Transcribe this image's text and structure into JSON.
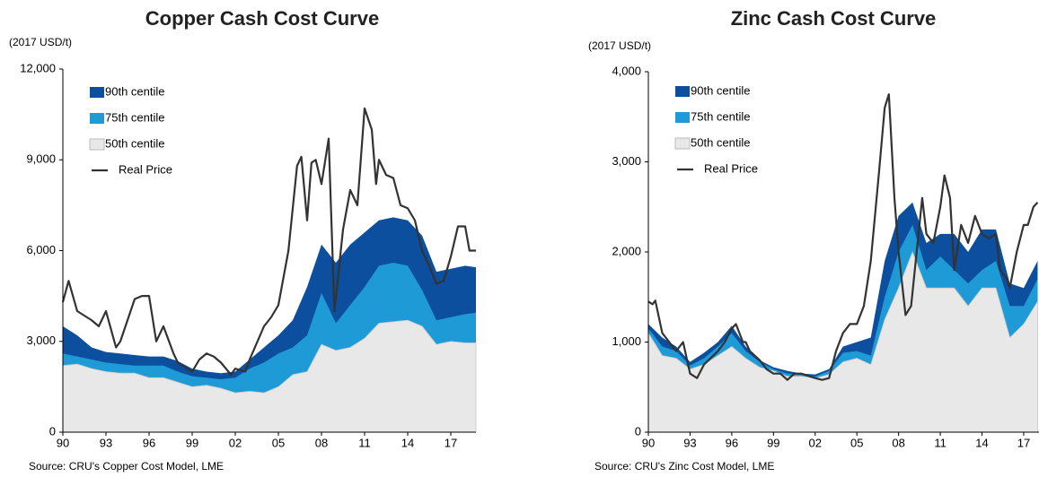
{
  "chart_data": [
    {
      "type": "area",
      "title": "Copper Cash Cost Curve",
      "y_label": "(2017 USD/t)",
      "source": "Source: CRU's Copper Cost Model, LME",
      "xlim": [
        1990,
        2018.75
      ],
      "ylim": [
        0,
        12000
      ],
      "xticks": [
        {
          "value": 1990,
          "label": "90"
        },
        {
          "value": 1993,
          "label": "93"
        },
        {
          "value": 1996,
          "label": "96"
        },
        {
          "value": 1999,
          "label": "99"
        },
        {
          "value": 2002,
          "label": "02"
        },
        {
          "value": 2005,
          "label": "05"
        },
        {
          "value": 2008,
          "label": "08"
        },
        {
          "value": 2011,
          "label": "11"
        },
        {
          "value": 2014,
          "label": "14"
        },
        {
          "value": 2017,
          "label": "17"
        }
      ],
      "yticks": [
        0,
        {
          "value": 3000,
          "label": "3,000"
        },
        {
          "value": 6000,
          "label": "6,000"
        },
        {
          "value": 9000,
          "label": "9,000"
        },
        {
          "value": 12000,
          "label": "12,000"
        }
      ],
      "legend": "upper left",
      "series": [
        {
          "name": "90th centile",
          "type": "area",
          "color": "#0b4f9e",
          "x": [
            1990,
            1991,
            1992,
            1993,
            1994,
            1995,
            1996,
            1997,
            1998,
            1999,
            2000,
            2001,
            2002,
            2003,
            2004,
            2005,
            2006,
            2007,
            2008,
            2009,
            2010,
            2011,
            2012,
            2013,
            2014,
            2015,
            2016,
            2017,
            2018,
            2018.75
          ],
          "values": [
            3500,
            3200,
            2800,
            2650,
            2600,
            2550,
            2500,
            2500,
            2350,
            2100,
            2000,
            1950,
            2000,
            2400,
            2800,
            3200,
            3700,
            4800,
            6200,
            5600,
            6200,
            6600,
            7000,
            7100,
            7000,
            6500,
            5300,
            5400,
            5500,
            5450
          ]
        },
        {
          "name": "75th centile",
          "type": "area",
          "color": "#1e9ad6",
          "x": [
            1990,
            1991,
            1992,
            1993,
            1994,
            1995,
            1996,
            1997,
            1998,
            1999,
            2000,
            2001,
            2002,
            2003,
            2004,
            2005,
            2006,
            2007,
            2008,
            2009,
            2010,
            2011,
            2012,
            2013,
            2014,
            2015,
            2016,
            2017,
            2018,
            2018.75
          ],
          "values": [
            2600,
            2500,
            2400,
            2300,
            2250,
            2200,
            2200,
            2200,
            2000,
            1850,
            1800,
            1750,
            1800,
            2100,
            2300,
            2600,
            2800,
            3200,
            4600,
            3600,
            4200,
            4800,
            5500,
            5600,
            5500,
            4700,
            3700,
            3800,
            3900,
            3950
          ]
        },
        {
          "name": "50th centile",
          "type": "area",
          "color": "#e8e8e8",
          "x": [
            1990,
            1991,
            1992,
            1993,
            1994,
            1995,
            1996,
            1997,
            1998,
            1999,
            2000,
            2001,
            2002,
            2003,
            2004,
            2005,
            2006,
            2007,
            2008,
            2009,
            2010,
            2011,
            2012,
            2013,
            2014,
            2015,
            2016,
            2017,
            2018,
            2018.75
          ],
          "values": [
            2200,
            2250,
            2100,
            2000,
            1950,
            1950,
            1800,
            1800,
            1650,
            1500,
            1550,
            1450,
            1300,
            1350,
            1300,
            1500,
            1900,
            2000,
            2900,
            2700,
            2800,
            3100,
            3600,
            3650,
            3700,
            3500,
            2900,
            3000,
            2950,
            2950
          ]
        },
        {
          "name": "Real Price",
          "type": "line",
          "color": "#333333",
          "x": [
            1990,
            1990.4,
            1991,
            1992,
            1992.5,
            1993,
            1993.7,
            1994,
            1995,
            1995.5,
            1996,
            1996.5,
            1997,
            1997.7,
            1998,
            1999,
            1999.5,
            2000,
            2000.5,
            2001,
            2001.7,
            2002,
            2002.7,
            2003,
            2004,
            2004.5,
            2005,
            2005.7,
            2006.3,
            2006.6,
            2007,
            2007.3,
            2007.6,
            2008,
            2008.5,
            2008.9,
            2009.5,
            2010,
            2010.5,
            2011,
            2011.5,
            2011.8,
            2012,
            2012.5,
            2013,
            2013.5,
            2014,
            2014.5,
            2015,
            2015.5,
            2016,
            2016.5,
            2017,
            2017.5,
            2018,
            2018.3,
            2018.75
          ],
          "values": [
            4300,
            5000,
            4000,
            3700,
            3500,
            4000,
            2800,
            3000,
            4400,
            4500,
            4500,
            3000,
            3500,
            2600,
            2300,
            2000,
            2400,
            2600,
            2500,
            2300,
            1900,
            2100,
            2000,
            2400,
            3500,
            3800,
            4200,
            6000,
            8800,
            9100,
            7000,
            8900,
            9000,
            8200,
            9700,
            4000,
            6700,
            8000,
            7500,
            10700,
            10000,
            8200,
            9000,
            8500,
            8400,
            7500,
            7400,
            7000,
            6000,
            5500,
            4900,
            5000,
            5800,
            6800,
            6800,
            6000,
            6000
          ]
        }
      ]
    },
    {
      "type": "area",
      "title": "Zinc Cash Cost Curve",
      "y_label": "(2017 USD/t)",
      "source": "Source: CRU's Zinc Cost Model, LME",
      "xlim": [
        1990,
        2018.1
      ],
      "ylim": [
        0,
        4000
      ],
      "xticks": [
        {
          "value": 1990,
          "label": "90"
        },
        {
          "value": 1993,
          "label": "93"
        },
        {
          "value": 1996,
          "label": "96"
        },
        {
          "value": 1999,
          "label": "99"
        },
        {
          "value": 2002,
          "label": "02"
        },
        {
          "value": 2005,
          "label": "05"
        },
        {
          "value": 2008,
          "label": "08"
        },
        {
          "value": 2011,
          "label": "11"
        },
        {
          "value": 2014,
          "label": "14"
        },
        {
          "value": 2017,
          "label": "17"
        }
      ],
      "yticks": [
        0,
        {
          "value": 1000,
          "label": "1,000"
        },
        {
          "value": 2000,
          "label": "2,000"
        },
        {
          "value": 3000,
          "label": "3,000"
        },
        {
          "value": 4000,
          "label": "4,000"
        }
      ],
      "legend": "upper left",
      "series": [
        {
          "name": "90th centile",
          "type": "area",
          "color": "#0b4f9e",
          "x": [
            1990,
            1991,
            1992,
            1993,
            1994,
            1995,
            1996,
            1997,
            1998,
            1999,
            2000,
            2001,
            2002,
            2003,
            2004,
            2005,
            2006,
            2007,
            2008,
            2009,
            2010,
            2011,
            2012,
            2013,
            2014,
            2015,
            2016,
            2017,
            2018
          ],
          "values": [
            1200,
            1050,
            950,
            780,
            880,
            1000,
            1180,
            950,
            800,
            720,
            680,
            650,
            640,
            700,
            950,
            1000,
            1050,
            1900,
            2400,
            2550,
            2100,
            2200,
            2200,
            2000,
            2250,
            2250,
            1650,
            1600,
            1900
          ]
        },
        {
          "name": "75th centile",
          "type": "area",
          "color": "#1e9ad6",
          "x": [
            1990,
            1991,
            1992,
            1993,
            1994,
            1995,
            1996,
            1997,
            1998,
            1999,
            2000,
            2001,
            2002,
            2003,
            2004,
            2005,
            2006,
            2007,
            2008,
            2009,
            2010,
            2011,
            2012,
            2013,
            2014,
            2015,
            2016,
            2017,
            2018
          ],
          "values": [
            1150,
            950,
            900,
            740,
            820,
            950,
            1100,
            900,
            780,
            700,
            650,
            640,
            620,
            680,
            880,
            900,
            850,
            1500,
            2000,
            2300,
            1800,
            1950,
            1800,
            1650,
            1800,
            1900,
            1400,
            1400,
            1700
          ]
        },
        {
          "name": "50th centile",
          "type": "area",
          "color": "#e8e8e8",
          "x": [
            1990,
            1991,
            1992,
            1993,
            1994,
            1995,
            1996,
            1997,
            1998,
            1999,
            2000,
            2001,
            2002,
            2003,
            2004,
            2005,
            2006,
            2007,
            2008,
            2009,
            2010,
            2011,
            2012,
            2013,
            2014,
            2015,
            2016,
            2017,
            2018
          ],
          "values": [
            1100,
            850,
            820,
            700,
            750,
            850,
            950,
            820,
            720,
            680,
            620,
            620,
            600,
            640,
            780,
            820,
            750,
            1250,
            1600,
            2000,
            1600,
            1600,
            1600,
            1400,
            1600,
            1600,
            1050,
            1200,
            1450
          ]
        },
        {
          "name": "Real Price",
          "type": "line",
          "color": "#333333",
          "x": [
            1990,
            1990.3,
            1990.5,
            1991,
            1992,
            1992.5,
            1993,
            1993.5,
            1994,
            1995,
            1995.5,
            1996,
            1996.3,
            1996.8,
            1997,
            1997.3,
            1998,
            1998.5,
            1999,
            1999.5,
            2000,
            2000.5,
            2001,
            2002,
            2002.5,
            2003,
            2003.5,
            2004,
            2004.5,
            2005,
            2005.5,
            2006,
            2006.6,
            2007,
            2007.3,
            2007.7,
            2008,
            2008.5,
            2008.9,
            2009.3,
            2009.7,
            2010,
            2010.5,
            2011,
            2011.3,
            2011.7,
            2012,
            2012.5,
            2013,
            2013.5,
            2014,
            2014.5,
            2015,
            2015.3,
            2015.8,
            2016,
            2016.5,
            2017,
            2017.3,
            2017.7,
            2018
          ],
          "values": [
            1450,
            1420,
            1460,
            1100,
            900,
            1000,
            650,
            600,
            750,
            900,
            1000,
            1150,
            1200,
            1000,
            1000,
            900,
            800,
            700,
            650,
            650,
            580,
            650,
            650,
            600,
            580,
            600,
            900,
            1100,
            1200,
            1200,
            1400,
            1900,
            2900,
            3600,
            3750,
            2600,
            2000,
            1300,
            1400,
            2000,
            2600,
            2200,
            2100,
            2500,
            2850,
            2600,
            1800,
            2300,
            2100,
            2400,
            2200,
            2150,
            2200,
            1800,
            1700,
            1600,
            2000,
            2300,
            2300,
            2500,
            2550
          ]
        }
      ]
    }
  ]
}
